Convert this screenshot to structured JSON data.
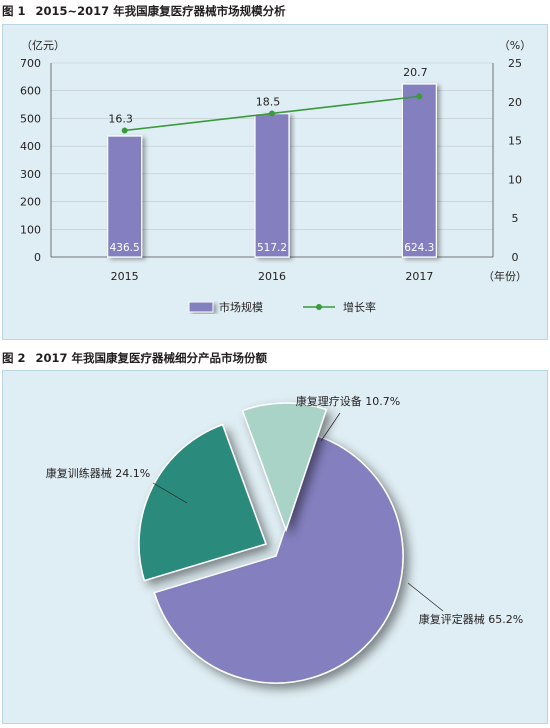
{
  "figure1": {
    "number": "图 1",
    "title": "2015~2017 年我国康复医疗器械市场规模分析"
  },
  "figure2": {
    "number": "图 2",
    "title": "2017 年我国康复医疗器械细分产品市场份额"
  },
  "colors": {
    "panel_bg": "#dfeef4",
    "bar": "#8480bf",
    "line": "#3a9a3c",
    "pie_eval": "#8480bf",
    "pie_train": "#2b8a7c",
    "pie_physio": "#a8d3c6"
  },
  "chart_data": [
    {
      "type": "bar",
      "title": "2015~2017 年我国康复医疗器械市场规模分析",
      "categories": [
        "2015",
        "2016",
        "2017"
      ],
      "x_tick_labels": [
        "2015",
        "2016",
        "2017"
      ],
      "xlabel": "（年份）",
      "ylabel_left": "（亿元）",
      "ylabel_right": "（%）",
      "ylim_left": [
        0,
        700
      ],
      "yticks_left": [
        "0",
        "100",
        "200",
        "300",
        "400",
        "500",
        "600",
        "700"
      ],
      "ylim_right": [
        0,
        25
      ],
      "yticks_right": [
        "0",
        "5",
        "10",
        "15",
        "20",
        "25"
      ],
      "grid": true,
      "legend_position": "bottom",
      "series": [
        {
          "name": "市场规模",
          "type": "bar",
          "axis": "left",
          "values": [
            436.5,
            517.2,
            624.3
          ],
          "labels": [
            "436.5",
            "517.2",
            "624.3"
          ]
        },
        {
          "name": "增长率",
          "type": "line",
          "axis": "right",
          "values": [
            16.3,
            18.5,
            20.7
          ],
          "labels": [
            "16.3",
            "18.5",
            "20.7"
          ]
        }
      ]
    },
    {
      "type": "pie",
      "title": "2017 年我国康复医疗器械细分产品市场份额",
      "slices": [
        {
          "name": "康复评定器械",
          "value": 65.2,
          "label": "康复评定器械 65.2%"
        },
        {
          "name": "康复训练器械",
          "value": 24.1,
          "label": "康复训练器械 24.1%"
        },
        {
          "name": "康复理疗设备",
          "value": 10.7,
          "label": "康复理疗设备 10.7%"
        }
      ]
    }
  ]
}
